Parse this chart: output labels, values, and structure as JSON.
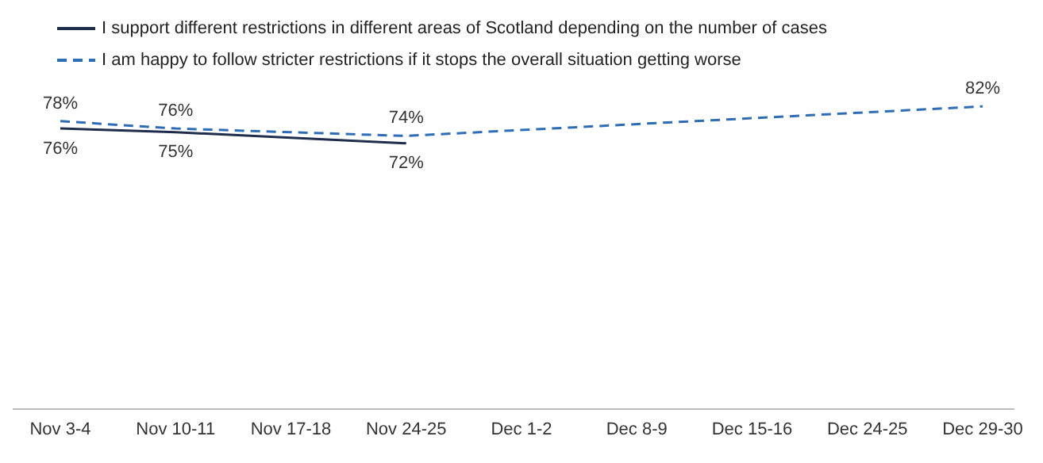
{
  "chart_data": {
    "type": "line",
    "categories": [
      "Nov 3-4",
      "Nov 10-11",
      "Nov 17-18",
      "Nov 24-25",
      "Dec 1-2",
      "Dec 8-9",
      "Dec 15-16",
      "Dec 24-25",
      "Dec 29-30"
    ],
    "series": [
      {
        "name": "I support different restrictions in different areas of Scotland depending on the number of cases",
        "color": "#1f2d4d",
        "line_style": "solid",
        "values": [
          76,
          75,
          null,
          72,
          null,
          null,
          null,
          null,
          null
        ],
        "value_labels": [
          "76%",
          "75%",
          null,
          "72%",
          null,
          null,
          null,
          null,
          null
        ]
      },
      {
        "name": "I am happy to follow stricter restrictions if it stops the overall situation getting worse",
        "color": "#2e6db4",
        "line_style": "dashed",
        "values": [
          78,
          76,
          null,
          74,
          null,
          null,
          null,
          null,
          82
        ],
        "value_labels": [
          "78%",
          "76%",
          null,
          "74%",
          null,
          null,
          null,
          null,
          "82%"
        ]
      }
    ],
    "tick_labels": "x",
    "legend": "top left",
    "marker": "none"
  }
}
